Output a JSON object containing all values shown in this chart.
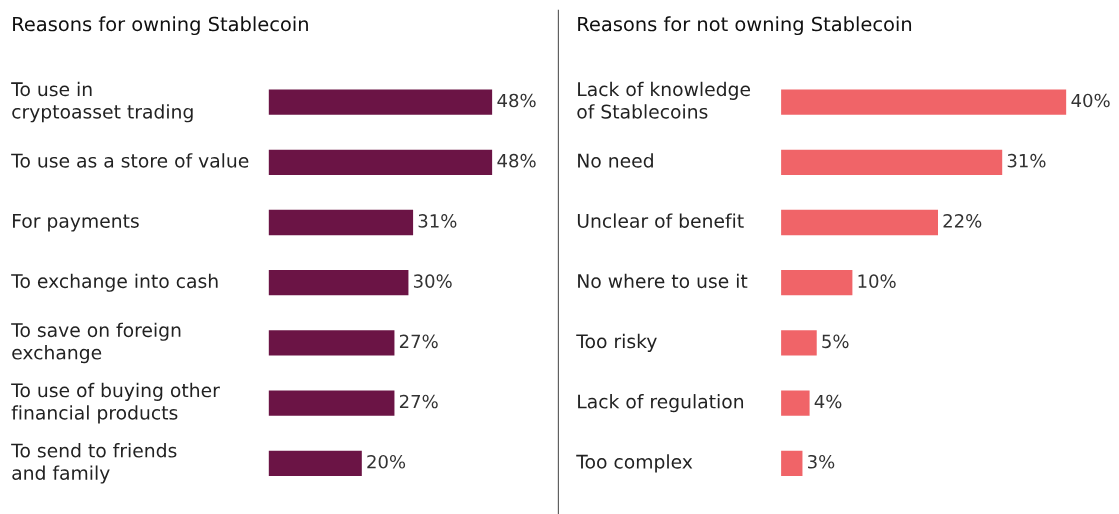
{
  "chart_data": [
    {
      "type": "bar",
      "orientation": "horizontal",
      "title": "Reasons for owning Stablecoin",
      "categories": [
        "To use in\ncryptoasset trading",
        "To use as a store of value",
        "For payments",
        "To exchange into cash",
        "To save on foreign\nexchange",
        "To use of buying other\nfinancial products",
        "To send to friends\nand family"
      ],
      "values": [
        48,
        48,
        31,
        30,
        27,
        27,
        20
      ],
      "value_labels": [
        "48%",
        "48%",
        "31%",
        "30%",
        "27%",
        "27%",
        "20%"
      ],
      "color": "#6b1445",
      "tick_labels": false
    },
    {
      "type": "bar",
      "orientation": "horizontal",
      "title": "Reasons for not owning Stablecoin",
      "categories": [
        "Lack of knowledge\nof Stablecoins",
        "No need",
        "Unclear of benefit",
        "No where to use it",
        "Too risky",
        "Lack of regulation",
        "Too complex"
      ],
      "values": [
        40,
        31,
        22,
        10,
        5,
        4,
        3
      ],
      "value_labels": [
        "40%",
        "31%",
        "22%",
        "10%",
        "5%",
        "4%",
        "3%"
      ],
      "color": "#f06468",
      "tick_labels": false
    }
  ]
}
